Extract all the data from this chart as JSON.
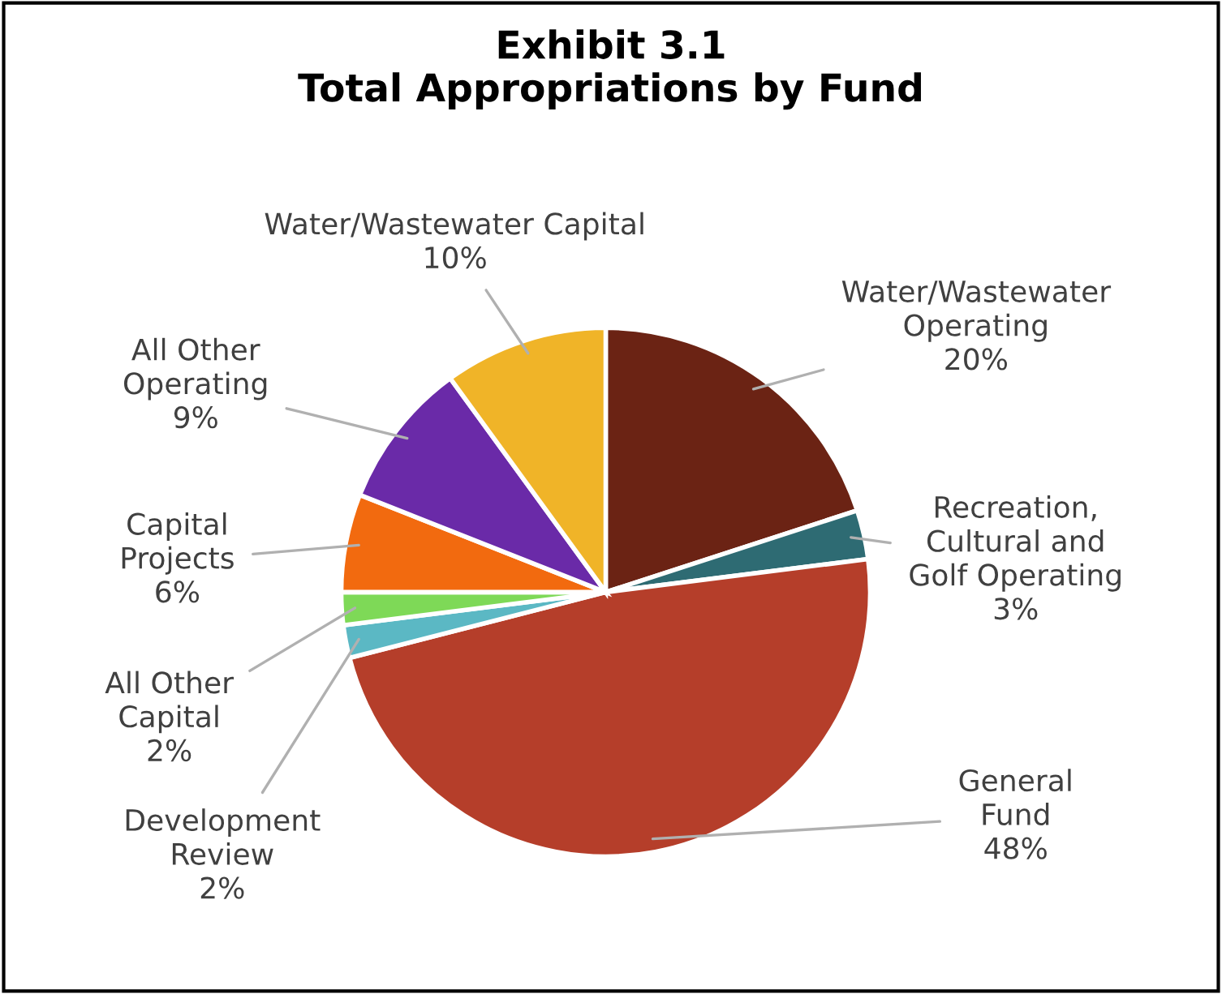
{
  "chart_data": {
    "type": "pie",
    "title": "Exhibit 3.1\nTotal Appropriations by Fund",
    "categories": [
      "Water/Wastewater\nOperating",
      "Recreation,\nCultural and\nGolf Operating",
      "General\nFund",
      "Development\nReview",
      "All Other\nCapital",
      "Capital\nProjects",
      "All Other\nOperating",
      "Water/Wastewater Capital"
    ],
    "values": [
      20,
      3,
      48,
      2,
      2,
      6,
      9,
      10
    ],
    "value_labels": [
      "20%",
      "3%",
      "48%",
      "2%",
      "2%",
      "6%",
      "9%",
      "10%"
    ],
    "colors": [
      "#6b2314",
      "#2e6b73",
      "#b53e2a",
      "#5bb8c4",
      "#7ed957",
      "#f26a0f",
      "#6a2aa8",
      "#f0b428"
    ]
  }
}
